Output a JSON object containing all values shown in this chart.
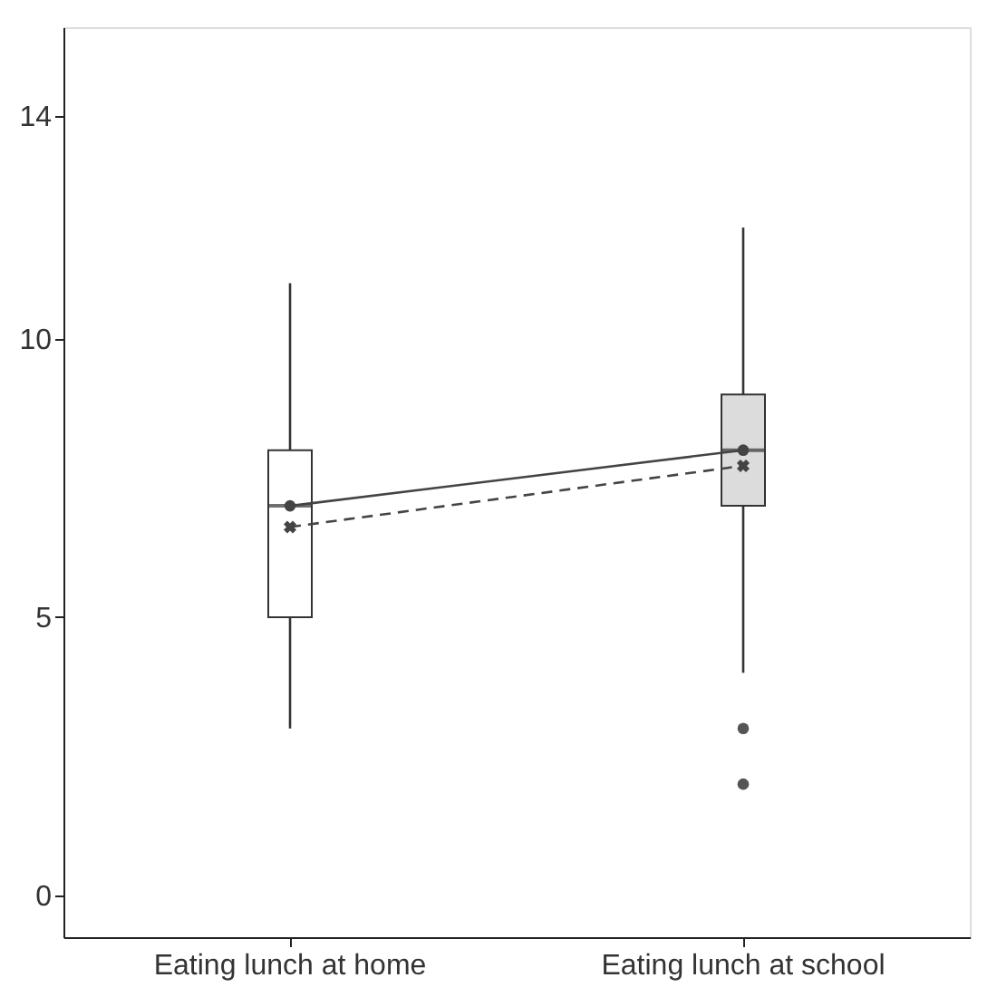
{
  "chart_data": {
    "type": "box",
    "categories": [
      "Eating lunch at home",
      "Eating lunch at school"
    ],
    "boxes": [
      {
        "low": 3,
        "q1": 5,
        "median": 7,
        "q3": 8,
        "high": 11,
        "mean": 6.62
      },
      {
        "low": 4,
        "q1": 7,
        "median": 8,
        "q3": 9,
        "high": 12,
        "mean": 7.72,
        "outliers": [
          3,
          2
        ]
      }
    ],
    "colors": [
      "#ffffff",
      "#dcdcdc"
    ],
    "series": [
      {
        "type": "line",
        "values": [
          7,
          8
        ],
        "color": "#444444",
        "marker": "circle",
        "line_style": "solid"
      },
      {
        "type": "line",
        "values": [
          6.62,
          7.72
        ],
        "color": "#444444",
        "line_style": "dashed"
      }
    ],
    "ylim": [
      -0.75,
      15.6
    ],
    "yticks": [
      0,
      5,
      10,
      14
    ],
    "grid": false
  }
}
